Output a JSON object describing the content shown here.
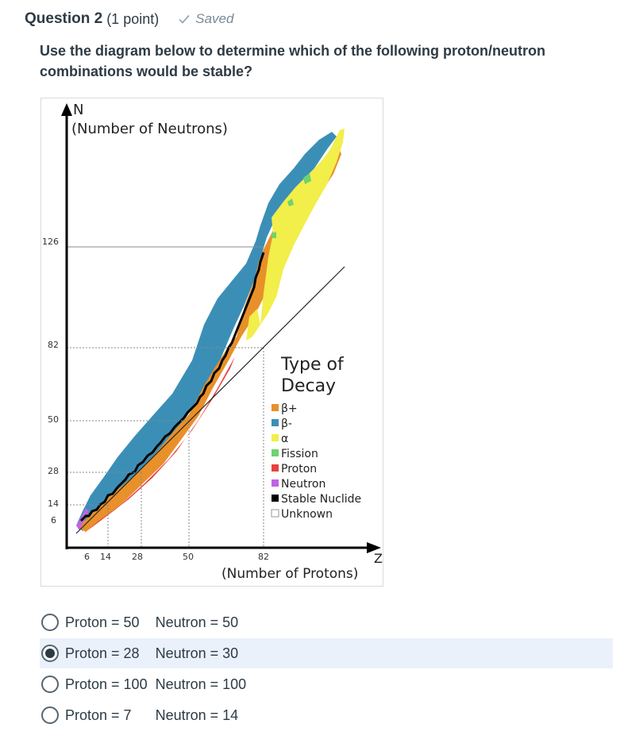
{
  "question": {
    "title": "Question 2",
    "points": "(1 point)",
    "status": "Saved",
    "text": "Use the diagram below to determine which of the following proton/neutron combinations would be stable?"
  },
  "diagram": {
    "y_axis_letter": "N",
    "y_axis_label": "(Number of Neutrons)",
    "x_axis_letter": "Z",
    "x_axis_label": "(Number of Protons)",
    "y_ticks": [
      "126",
      "82",
      "50",
      "28",
      "14",
      "6"
    ],
    "x_ticks": [
      "6",
      "14",
      "28",
      "50",
      "82"
    ],
    "legend_title_1": "Type of",
    "legend_title_2": "Decay",
    "legend": [
      {
        "label": "β+",
        "color": "#e8902a"
      },
      {
        "label": "β-",
        "color": "#3b8fb6"
      },
      {
        "label": "α",
        "color": "#f2ee4a"
      },
      {
        "label": "Fission",
        "color": "#6fd36f"
      },
      {
        "label": "Proton",
        "color": "#e8413f"
      },
      {
        "label": "Neutron",
        "color": "#c064e0"
      },
      {
        "label": "Stable Nuclide",
        "color": "#000000"
      },
      {
        "label": "Unknown",
        "color": "#ffffff"
      }
    ]
  },
  "options": [
    {
      "label": "Proton = 50    Neutron = 50",
      "selected": false
    },
    {
      "label": "Proton = 28    Neutron = 30",
      "selected": true
    },
    {
      "label": "Proton = 100  Neutron = 100",
      "selected": false
    },
    {
      "label": "Proton = 7      Neutron = 14",
      "selected": false
    }
  ]
}
